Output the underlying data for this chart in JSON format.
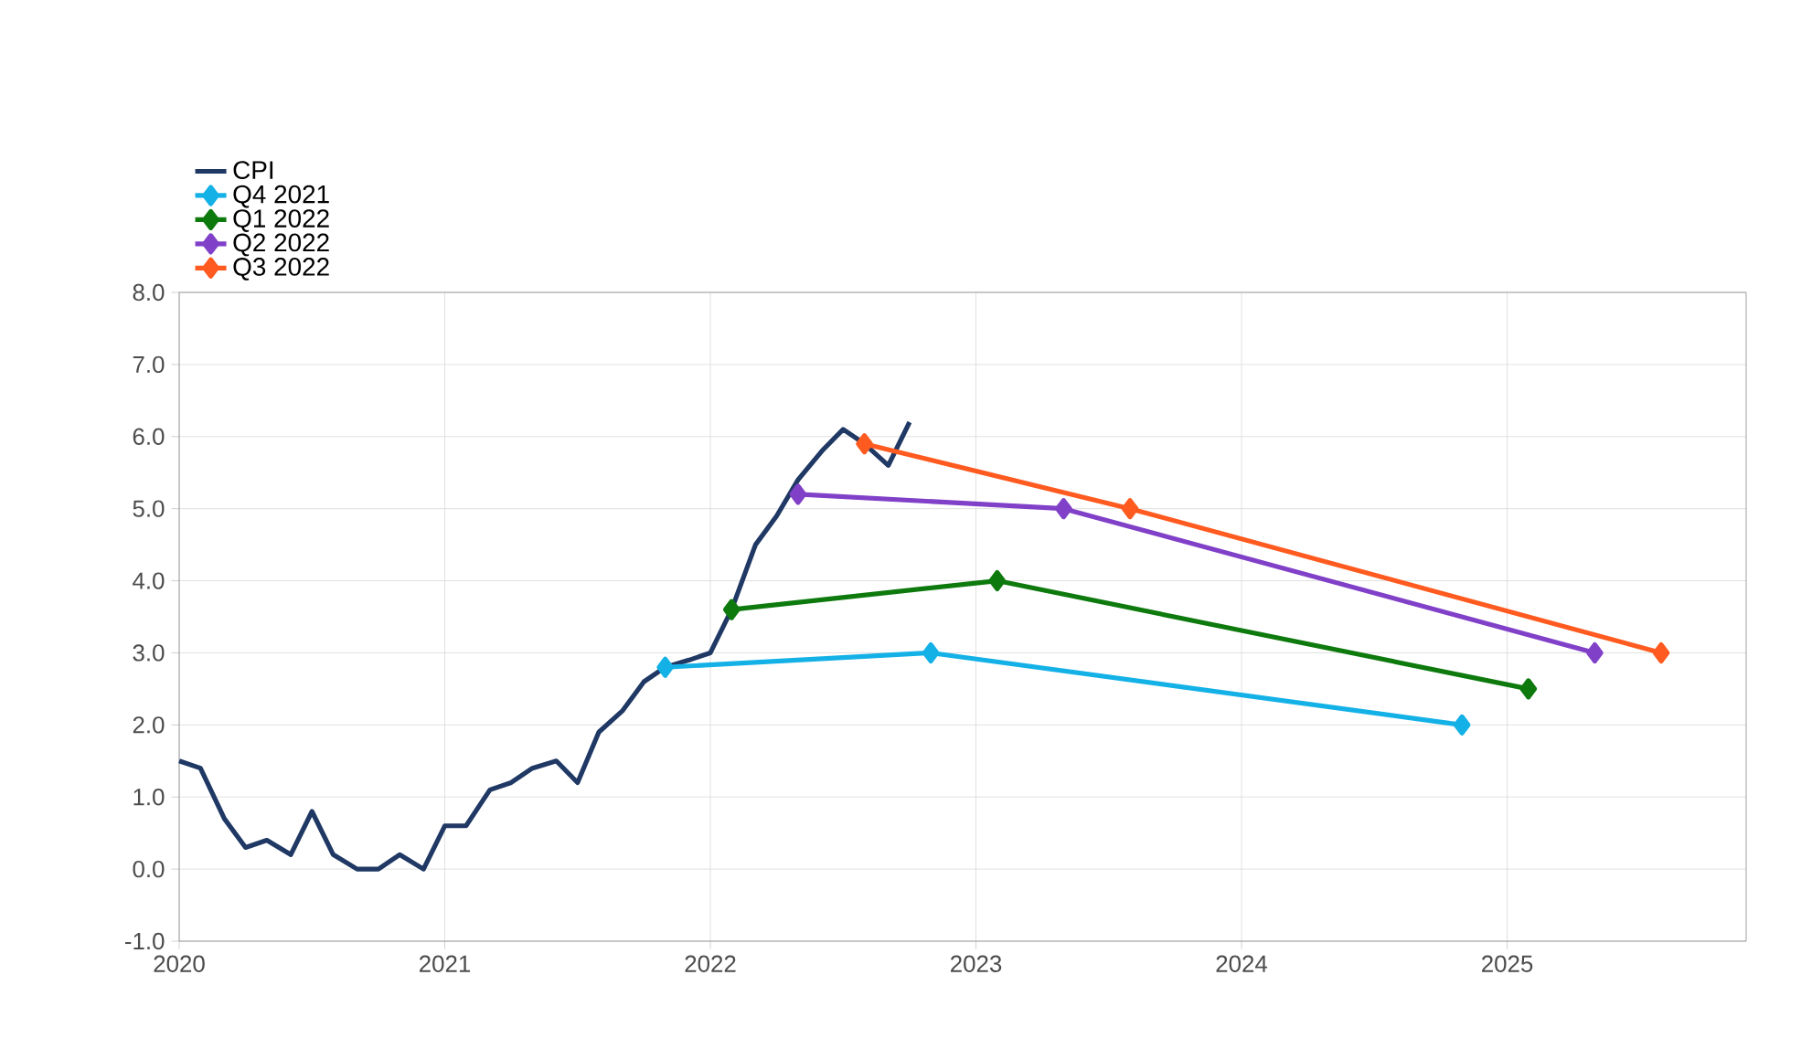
{
  "chart_data": {
    "type": "line",
    "xlim": [
      2020,
      2025.9
    ],
    "xticks": [
      2020,
      2021,
      2022,
      2023,
      2024,
      2025
    ],
    "ylim": [
      -1,
      8
    ],
    "yticks": [
      {
        "value": -1,
        "label": "-1.0"
      },
      {
        "value": 0,
        "label": "0.0"
      },
      {
        "value": 1,
        "label": "1.0"
      },
      {
        "value": 2,
        "label": "2.0"
      },
      {
        "value": 3,
        "label": "3.0"
      },
      {
        "value": 4,
        "label": "4.0"
      },
      {
        "value": 5,
        "label": "5.0"
      },
      {
        "value": 6,
        "label": "6.0"
      },
      {
        "value": 7,
        "label": "7.0"
      },
      {
        "value": 8,
        "label": "8.0"
      }
    ],
    "grid": true,
    "legend": "top left",
    "series": [
      {
        "name": "CPI",
        "color": "#1f3864",
        "marker": "none",
        "x": [
          2020.0,
          2020.08,
          2020.17,
          2020.25,
          2020.33,
          2020.42,
          2020.5,
          2020.58,
          2020.67,
          2020.75,
          2020.83,
          2020.92,
          2021.0,
          2021.08,
          2021.17,
          2021.25,
          2021.33,
          2021.42,
          2021.5,
          2021.58,
          2021.67,
          2021.75,
          2021.83,
          2021.92,
          2022.0,
          2022.08,
          2022.17,
          2022.25,
          2022.33,
          2022.42,
          2022.5,
          2022.58,
          2022.67,
          2022.75
        ],
        "values": [
          1.5,
          1.4,
          0.7,
          0.3,
          0.4,
          0.2,
          0.8,
          0.2,
          0.0,
          0.0,
          0.2,
          0.0,
          0.6,
          0.6,
          1.1,
          1.2,
          1.4,
          1.5,
          1.2,
          1.9,
          2.2,
          2.6,
          2.8,
          2.9,
          3.0,
          3.6,
          4.5,
          4.9,
          5.4,
          5.8,
          6.1,
          5.9,
          5.6,
          6.2
        ]
      },
      {
        "name": "Q4 2021",
        "color": "#14b1e7",
        "marker": "diamond",
        "x": [
          2021.83,
          2022.83,
          2024.83
        ],
        "values": [
          2.8,
          3.0,
          2.0
        ]
      },
      {
        "name": "Q1 2022",
        "color": "#0e7a0e",
        "marker": "diamond",
        "x": [
          2022.08,
          2023.08,
          2025.08
        ],
        "values": [
          3.6,
          4.0,
          2.5
        ]
      },
      {
        "name": "Q2 2022",
        "color": "#8040c8",
        "marker": "diamond",
        "x": [
          2022.33,
          2023.33,
          2025.33
        ],
        "values": [
          5.2,
          5.0,
          3.0
        ]
      },
      {
        "name": "Q3 2022",
        "color": "#ff5a1f",
        "marker": "diamond",
        "x": [
          2022.58,
          2023.58,
          2025.58
        ],
        "values": [
          5.9,
          5.0,
          3.0
        ]
      }
    ]
  }
}
